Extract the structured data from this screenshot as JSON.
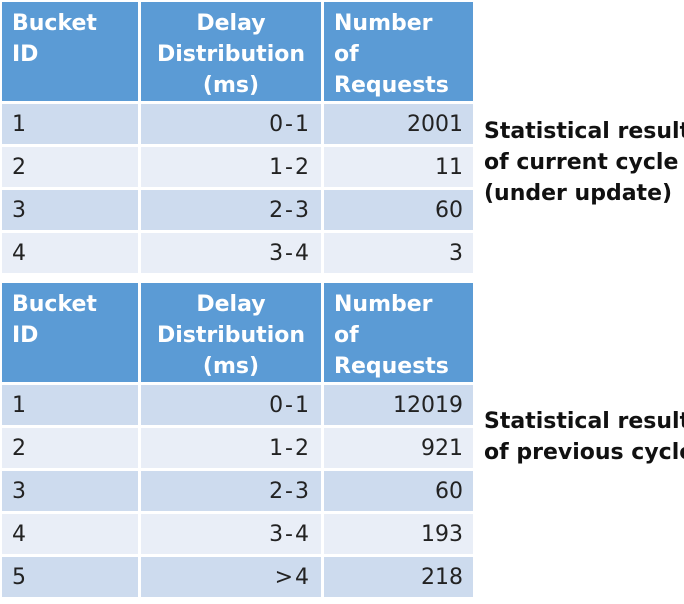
{
  "headers": {
    "bucket_id": "Bucket ID",
    "delay_line1": "Delay",
    "delay_line2": "Distribution",
    "delay_line3": "(ms)",
    "requests_line1": "Number of",
    "requests_line2": "Requests"
  },
  "current_cycle": {
    "label_lines": [
      "Statistical results",
      "of current cycle",
      "(under update)"
    ],
    "rows": [
      {
        "bucket": "1",
        "delay": "0-1",
        "requests": "2001"
      },
      {
        "bucket": "2",
        "delay": "1-2",
        "requests": "11"
      },
      {
        "bucket": "3",
        "delay": "2-3",
        "requests": "60"
      },
      {
        "bucket": "4",
        "delay": "3-4",
        "requests": "3"
      }
    ]
  },
  "previous_cycle": {
    "label_lines": [
      "Statistical results",
      "of previous cycle"
    ],
    "rows": [
      {
        "bucket": "1",
        "delay": "0-1",
        "requests": "12019"
      },
      {
        "bucket": "2",
        "delay": "1-2",
        "requests": "921"
      },
      {
        "bucket": "3",
        "delay": "2-3",
        "requests": "60"
      },
      {
        "bucket": "4",
        "delay": "3-4",
        "requests": "193"
      },
      {
        "bucket": "5",
        "delay": ">4",
        "requests": "218"
      }
    ]
  },
  "colors": {
    "header_bg": "#5b9bd5",
    "row_dark": "#cddbee",
    "row_light": "#e9eef7"
  }
}
